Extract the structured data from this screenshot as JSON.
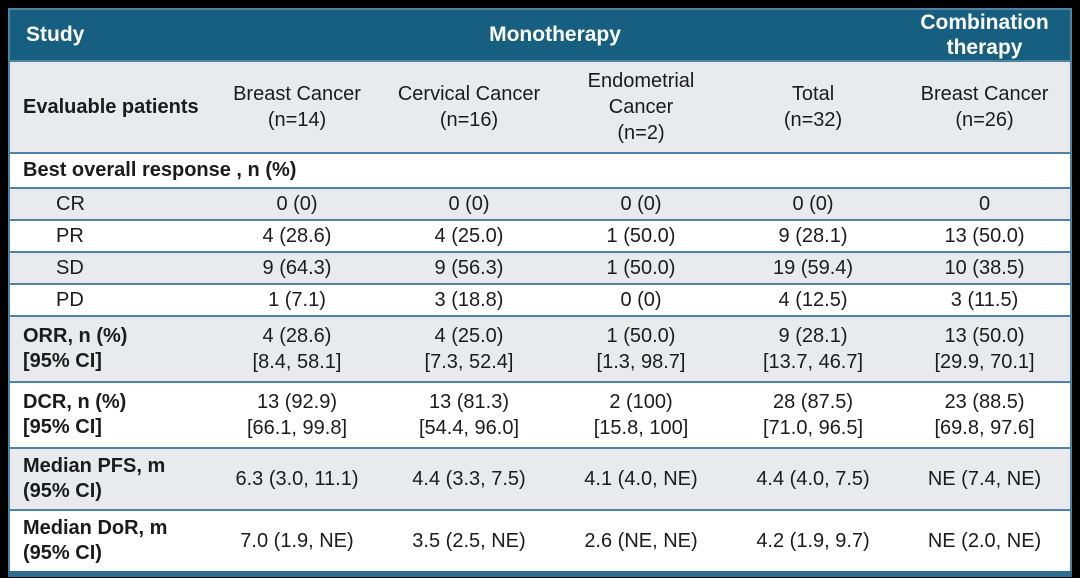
{
  "header": {
    "study": "Study",
    "monotherapy": "Monotherapy",
    "combination": "Combination therapy"
  },
  "evaluable": {
    "label": "Evaluable patients",
    "cols": [
      {
        "name": "Breast Cancer",
        "n": "(n=14)"
      },
      {
        "name": "Cervical Cancer",
        "n": "(n=16)"
      },
      {
        "name": "Endometrial Cancer",
        "n": "(n=2)"
      },
      {
        "name": "Total",
        "n": "(n=32)"
      },
      {
        "name": "Breast Cancer",
        "n": "(n=26)"
      }
    ]
  },
  "best_response": {
    "section_title": "Best overall response , n (%)",
    "rows": [
      {
        "label": "CR",
        "values": [
          "0 (0)",
          "0 (0)",
          "0 (0)",
          "0 (0)",
          "0"
        ]
      },
      {
        "label": "PR",
        "values": [
          "4 (28.6)",
          "4 (25.0)",
          "1 (50.0)",
          "9 (28.1)",
          "13 (50.0)"
        ]
      },
      {
        "label": "SD",
        "values": [
          "9 (64.3)",
          "9 (56.3)",
          "1 (50.0)",
          "19 (59.4)",
          "10 (38.5)"
        ]
      },
      {
        "label": "PD",
        "values": [
          "1 (7.1)",
          "3 (18.8)",
          "0 (0)",
          "4 (12.5)",
          "3 (11.5)"
        ]
      }
    ]
  },
  "orr": {
    "label_line1": "ORR, n (%)",
    "label_line2": "[95% CI]",
    "values": [
      {
        "n": "4 (28.6)",
        "ci": "[8.4, 58.1]"
      },
      {
        "n": "4 (25.0)",
        "ci": "[7.3, 52.4]"
      },
      {
        "n": "1 (50.0)",
        "ci": "[1.3, 98.7]"
      },
      {
        "n": "9 (28.1)",
        "ci": "[13.7, 46.7]"
      },
      {
        "n": "13 (50.0)",
        "ci": "[29.9, 70.1]"
      }
    ]
  },
  "dcr": {
    "label_line1": "DCR, n (%)",
    "label_line2": "[95% CI]",
    "values": [
      {
        "n": "13 (92.9)",
        "ci": "[66.1, 99.8]"
      },
      {
        "n": "13 (81.3)",
        "ci": "[54.4, 96.0]"
      },
      {
        "n": "2 (100)",
        "ci": "[15.8, 100]"
      },
      {
        "n": "28 (87.5)",
        "ci": "[71.0, 96.5]"
      },
      {
        "n": "23 (88.5)",
        "ci": "[69.8, 97.6]"
      }
    ]
  },
  "pfs": {
    "label_line1": "Median PFS, m",
    "label_line2": "(95% CI)",
    "values": [
      "6.3 (3.0, 11.1)",
      "4.4 (3.3, 7.5)",
      "4.1 (4.0, NE)",
      "4.4 (4.0, 7.5)",
      "NE (7.4, NE)"
    ]
  },
  "dor": {
    "label_line1": "Median DoR, m",
    "label_line2": "(95% CI)",
    "values": [
      "7.0 (1.9, NE)",
      "3.5 (2.5, NE)",
      "2.6 (NE, NE)",
      "4.2 (1.9, 9.7)",
      "NE (2.0, NE)"
    ]
  },
  "colors": {
    "header_bg": "#175f80",
    "row_alt_bg": "#e8eaed",
    "row_bg": "#ffffff",
    "separator": "#4e83a1",
    "bottom_bar": "#2e6e8e",
    "frame": "#000000",
    "header_text": "#ffffff",
    "body_text": "#1b1b1b"
  }
}
